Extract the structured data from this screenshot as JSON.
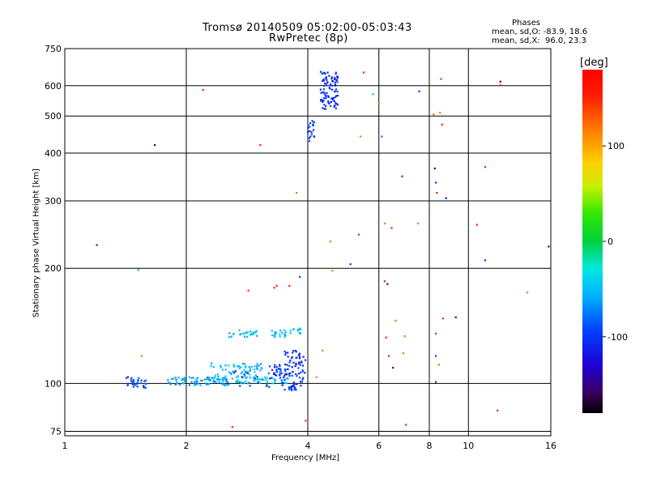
{
  "chart_data": {
    "type": "scatter",
    "title": "Tromsø 20140509 05:02:00-05:03:43",
    "subtitle": "RwPretec (8p)",
    "xlabel": "Frequency [MHz]",
    "ylabel": "Stationary phase Virtual Height [km]",
    "x_scale": "log",
    "y_scale": "log",
    "xlim": [
      1,
      16
    ],
    "ylim": [
      73,
      750
    ],
    "x_ticks": [
      {
        "value": 1,
        "label": "1"
      },
      {
        "value": 2,
        "label": "2"
      },
      {
        "value": 4,
        "label": "4"
      },
      {
        "value": 6,
        "label": "6"
      },
      {
        "value": 8,
        "label": "8"
      },
      {
        "value": 10,
        "label": "10"
      },
      {
        "value": 16,
        "label": "16"
      }
    ],
    "y_ticks": [
      {
        "value": 75,
        "label": "75"
      },
      {
        "value": 100,
        "label": "100"
      },
      {
        "value": 200,
        "label": "200"
      },
      {
        "value": 300,
        "label": "300"
      },
      {
        "value": 400,
        "label": "400"
      },
      {
        "value": 500,
        "label": "500"
      },
      {
        "value": 600,
        "label": "600"
      },
      {
        "value": 750,
        "label": "750"
      }
    ],
    "grid": true,
    "phase_stats": {
      "heading": "Phases",
      "line_o": "mean, sd,O: -83.9, 18.6",
      "line_x": "mean, sd,X:  96.0, 23.3"
    },
    "colorbar": {
      "label": "[deg]",
      "range": [
        -180,
        180
      ],
      "ticks": [
        {
          "value": 100,
          "label": "100"
        },
        {
          "value": 0,
          "label": "0"
        },
        {
          "value": -100,
          "label": "-100"
        }
      ]
    },
    "points": [
      [
        1.2,
        230,
        -110
      ],
      [
        1.52,
        198,
        -60
      ],
      [
        1.55,
        118,
        120
      ],
      [
        1.67,
        420,
        -160
      ],
      [
        2.2,
        585,
        150
      ],
      [
        2.6,
        77,
        150
      ],
      [
        2.85,
        175,
        150
      ],
      [
        3.05,
        420,
        150
      ],
      [
        3.3,
        178,
        150
      ],
      [
        3.35,
        180,
        150
      ],
      [
        3.6,
        180,
        150
      ],
      [
        3.75,
        315,
        120
      ],
      [
        3.82,
        190,
        -100
      ],
      [
        3.95,
        80,
        150
      ],
      [
        4.2,
        104,
        120
      ],
      [
        4.35,
        122,
        120
      ],
      [
        4.55,
        235,
        120
      ],
      [
        4.6,
        197,
        120
      ],
      [
        5.1,
        205,
        -100
      ],
      [
        5.35,
        245,
        -80
      ],
      [
        5.4,
        442,
        120
      ],
      [
        5.5,
        650,
        150
      ],
      [
        5.8,
        570,
        -50
      ],
      [
        6.0,
        540,
        120
      ],
      [
        6.1,
        442,
        -80
      ],
      [
        6.2,
        262,
        120
      ],
      [
        6.2,
        185,
        150
      ],
      [
        6.3,
        182,
        -130
      ],
      [
        6.25,
        132,
        150
      ],
      [
        6.35,
        118,
        150
      ],
      [
        6.5,
        110,
        -150
      ],
      [
        6.45,
        255,
        150
      ],
      [
        6.6,
        146,
        120
      ],
      [
        6.85,
        348,
        -100
      ],
      [
        6.9,
        120,
        120
      ],
      [
        6.95,
        133,
        120
      ],
      [
        7.0,
        78,
        150
      ],
      [
        7.5,
        262,
        120
      ],
      [
        7.55,
        580,
        -100
      ],
      [
        8.2,
        505,
        120
      ],
      [
        8.25,
        365,
        -150
      ],
      [
        8.3,
        335,
        -100
      ],
      [
        8.35,
        315,
        150
      ],
      [
        8.3,
        135,
        -80
      ],
      [
        8.3,
        118,
        -100
      ],
      [
        8.3,
        101,
        -100
      ],
      [
        8.5,
        510,
        120
      ],
      [
        8.55,
        625,
        -80
      ],
      [
        8.6,
        475,
        150
      ],
      [
        8.45,
        112,
        120
      ],
      [
        8.65,
        148,
        150
      ],
      [
        8.8,
        305,
        -130
      ],
      [
        9.3,
        149,
        -150
      ],
      [
        10.5,
        260,
        150
      ],
      [
        11.0,
        210,
        -100
      ],
      [
        11.0,
        368,
        150
      ],
      [
        12.0,
        615,
        -160
      ],
      [
        12.0,
        602,
        150
      ],
      [
        11.8,
        85,
        150
      ],
      [
        14.0,
        173,
        120
      ],
      [
        15.8,
        228,
        -150
      ]
    ],
    "series": [
      {
        "x": [
          1.42,
          1.6
        ],
        "y": [
          97,
          104
        ],
        "phase": -95,
        "count": 30
      },
      {
        "x": [
          1.8,
          2.55
        ],
        "y": [
          99,
          104
        ],
        "phase": -65,
        "count": 85
      },
      {
        "x": [
          2.3,
          3.1
        ],
        "y": [
          102,
          113
        ],
        "phase": -55,
        "count": 70
      },
      {
        "x": [
          2.6,
          3.9
        ],
        "y": [
          98,
          108
        ],
        "phase": -95,
        "count": 55
      },
      {
        "x": [
          2.65,
          3.6
        ],
        "y": [
          100,
          104
        ],
        "phase": -40,
        "count": 35
      },
      {
        "x": [
          2.55,
          3.0
        ],
        "y": [
          132,
          138
        ],
        "phase": -50,
        "count": 28
      },
      {
        "x": [
          3.25,
          3.55
        ],
        "y": [
          132,
          138
        ],
        "phase": -50,
        "count": 18
      },
      {
        "x": [
          3.6,
          3.85
        ],
        "y": [
          135,
          140
        ],
        "phase": -45,
        "count": 14
      },
      {
        "x": [
          3.5,
          3.95
        ],
        "y": [
          105,
          122
        ],
        "phase": -105,
        "count": 50
      },
      {
        "x": [
          3.2,
          3.45
        ],
        "y": [
          105,
          112
        ],
        "phase": -100,
        "count": 18
      },
      {
        "x": [
          3.5,
          3.75
        ],
        "y": [
          96,
          99
        ],
        "phase": -95,
        "count": 18
      },
      {
        "x": [
          4.0,
          4.15
        ],
        "y": [
          430,
          490
        ],
        "phase": -100,
        "count": 20
      },
      {
        "x": [
          4.3,
          4.75
        ],
        "y": [
          520,
          655
        ],
        "phase": -105,
        "count": 90
      }
    ]
  }
}
